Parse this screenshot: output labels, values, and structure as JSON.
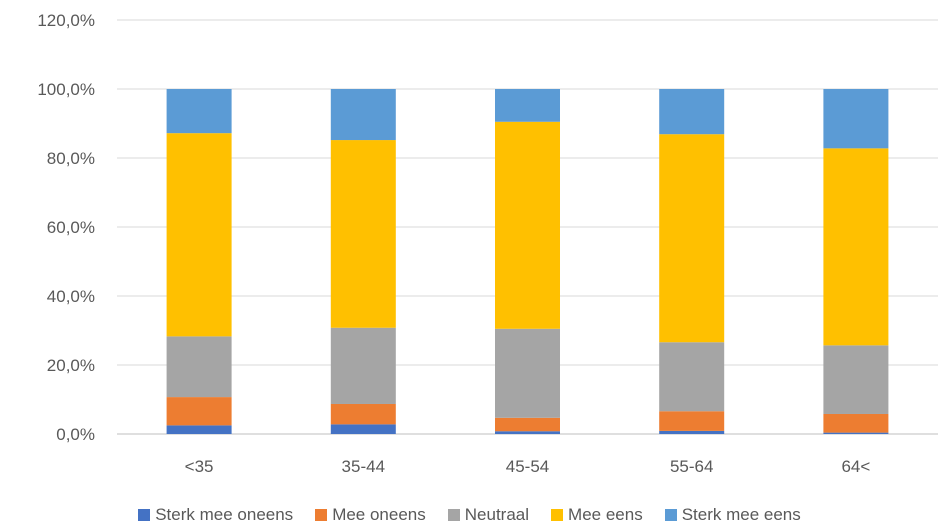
{
  "chart_data": {
    "type": "bar",
    "stacked": true,
    "categories": [
      "<35",
      "35-44",
      "45-54",
      "55-64",
      "64<"
    ],
    "series": [
      {
        "name": "Sterk mee oneens",
        "color": "#4472C4",
        "values": [
          2.5,
          2.8,
          0.8,
          0.9,
          0.4
        ]
      },
      {
        "name": "Mee oneens",
        "color": "#ED7D31",
        "values": [
          8.2,
          5.9,
          3.9,
          5.7,
          5.4
        ]
      },
      {
        "name": "Neutraal",
        "color": "#A5A5A5",
        "values": [
          17.6,
          22.1,
          25.8,
          20.0,
          19.9
        ]
      },
      {
        "name": "Mee eens",
        "color": "#FFC000",
        "values": [
          58.9,
          54.4,
          60.0,
          60.3,
          57.1
        ]
      },
      {
        "name": "Sterk mee eens",
        "color": "#5B9BD5",
        "values": [
          12.8,
          14.8,
          9.5,
          13.1,
          17.2
        ]
      }
    ],
    "y_ticks": [
      "0,0%",
      "20,0%",
      "40,0%",
      "60,0%",
      "80,0%",
      "100,0%",
      "120,0%"
    ],
    "ylim": [
      0,
      120
    ],
    "y_step": 20,
    "grid": true,
    "legend_position": "bottom"
  }
}
